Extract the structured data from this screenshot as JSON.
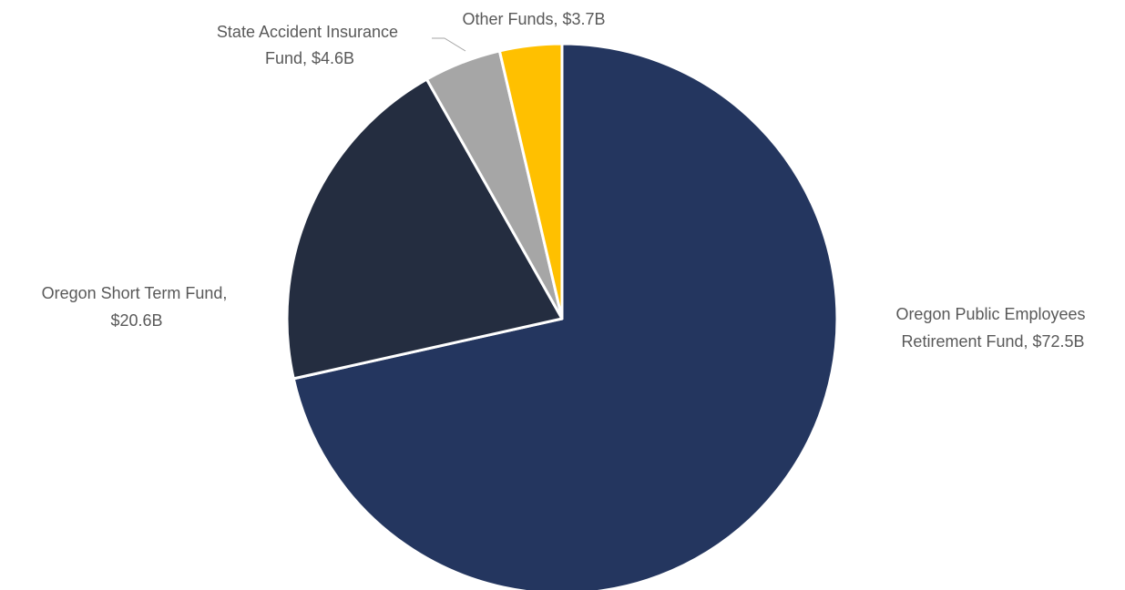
{
  "chart_data": {
    "type": "pie",
    "unit": "$B",
    "start": "12 o'clock, clockwise",
    "slices": [
      {
        "name": "Oregon Public Employees Retirement Fund",
        "value": 72.5,
        "label_lines": [
          "Oregon Public Employees",
          "Retirement Fund, $72.5B"
        ],
        "color": "#24365f"
      },
      {
        "name": "Oregon Short Term Fund",
        "value": 20.6,
        "label_lines": [
          "Oregon Short Term Fund,",
          "$20.6B"
        ],
        "color": "#242d40"
      },
      {
        "name": "State Accident Insurance Fund",
        "value": 4.6,
        "label_lines": [
          "State Accident Insurance",
          "Fund, $4.6B"
        ],
        "color": "#a6a6a6"
      },
      {
        "name": "Other Funds",
        "value": 3.7,
        "label_lines": [
          "Other Funds, $3.7B"
        ],
        "color": "#ffc000"
      }
    ]
  }
}
